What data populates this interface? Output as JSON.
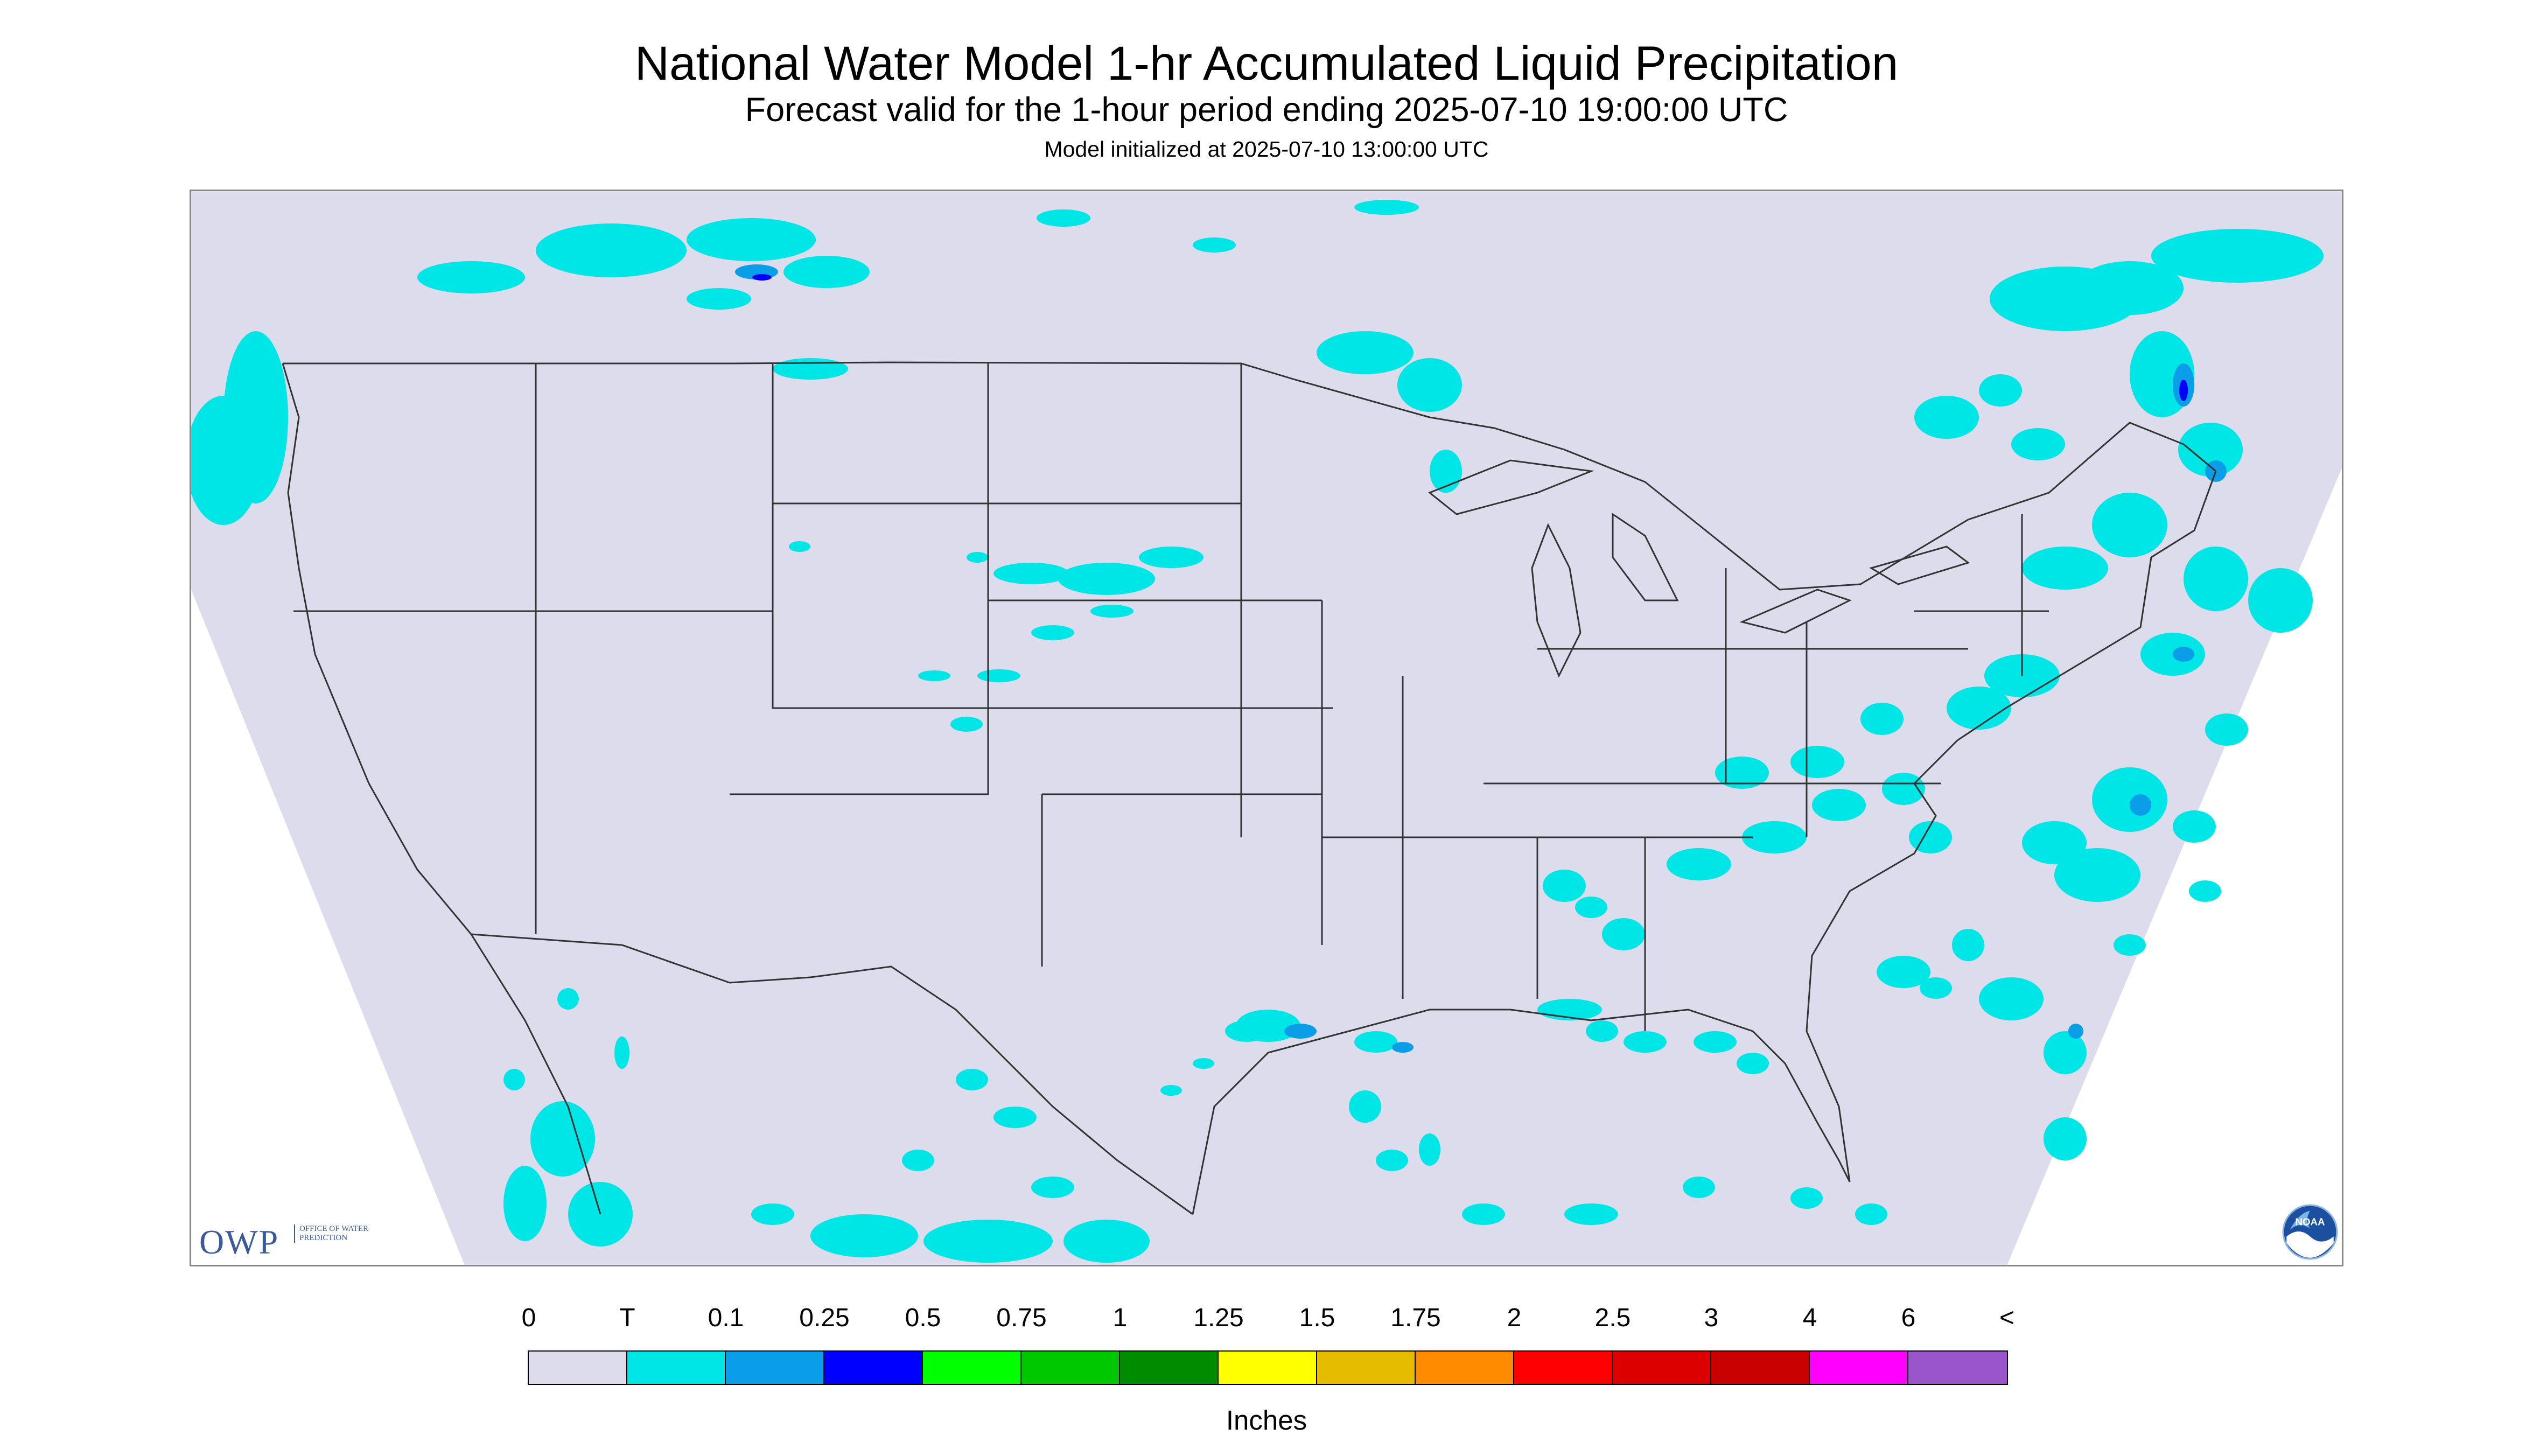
{
  "header": {
    "title": "National Water Model 1-hr Accumulated Liquid Precipitation",
    "subtitle": "Forecast valid for the 1-hour period ending 2025-07-10 19:00:00 UTC",
    "init_line": "Model initialized at 2025-07-10 13:00:00 UTC"
  },
  "map": {
    "background_color": "#dcdcec",
    "boundary_color": "#333333",
    "light_rain_color": "#00e5e5",
    "moderate_rain_color": "#0a9ee8",
    "heavy_rain_color": "#0000ff"
  },
  "logos": {
    "owp_letters": "OWP",
    "owp_text": "OFFICE OF WATER PREDICTION",
    "noaa_text": "NOAA"
  },
  "legend": {
    "tick_labels": [
      "0",
      "T",
      "0.1",
      "0.25",
      "0.5",
      "0.75",
      "1",
      "1.25",
      "1.5",
      "1.75",
      "2",
      "2.5",
      "3",
      "4",
      "6",
      "<"
    ],
    "colors": [
      "#dcdcec",
      "#00e5e5",
      "#0a9ee8",
      "#0000ff",
      "#00ff00",
      "#00c800",
      "#008c00",
      "#ffff00",
      "#e5bc00",
      "#ff8c00",
      "#ff0000",
      "#dc0000",
      "#c80000",
      "#ff00ff",
      "#9955c9"
    ],
    "units_label": "Inches"
  }
}
